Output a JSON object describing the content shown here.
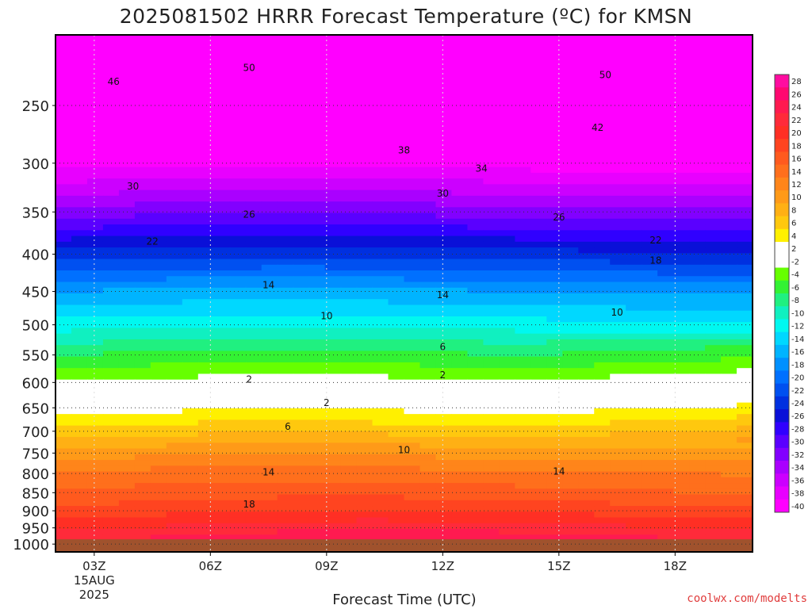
{
  "title": "2025081502 HRRR Forecast Temperature (ºC) for KMSN",
  "x_axis_title": "Forecast Time (UTC)",
  "credit": "coolwx.com/modelts",
  "chart_data": {
    "type": "heatmap",
    "variable": "Temperature (ºC)",
    "x_ticks": [
      {
        "label": "03Z",
        "hour": 3,
        "sub": [
          "15AUG",
          "2025"
        ]
      },
      {
        "label": "06Z",
        "hour": 6
      },
      {
        "label": "09Z",
        "hour": 9
      },
      {
        "label": "12Z",
        "hour": 12
      },
      {
        "label": "15Z",
        "hour": 15
      },
      {
        "label": "18Z",
        "hour": 18
      }
    ],
    "xlim_hours": [
      2,
      20
    ],
    "y_ticks": [
      250,
      300,
      350,
      400,
      450,
      500,
      550,
      600,
      650,
      700,
      750,
      800,
      850,
      900,
      950,
      1000
    ],
    "ylim_hpa": [
      1025,
      200
    ],
    "y_scale": "log-pressure",
    "ground_hpa": 985,
    "dotted_grid_levels": [
      250,
      300,
      350,
      400,
      450,
      500,
      550,
      600,
      650,
      700,
      750,
      800,
      850,
      900,
      950,
      1000
    ],
    "colorbar_levels": [
      28,
      26,
      24,
      22,
      20,
      18,
      16,
      14,
      12,
      10,
      8,
      6,
      4,
      2,
      -2,
      -4,
      -6,
      -8,
      -10,
      -12,
      -14,
      -16,
      -18,
      -20,
      -22,
      -24,
      -26,
      -28,
      -30,
      -32,
      -34,
      -36,
      -38,
      -40
    ],
    "colorbar_colors": [
      "#ff0ca0",
      "#ff0870",
      "#ff1a50",
      "#ff2a3a",
      "#ff2f24",
      "#ff4420",
      "#ff5a1e",
      "#ff6f1c",
      "#ff851a",
      "#ff9a18",
      "#ffb014",
      "#ffc80e",
      "#fff000",
      "#ffffff",
      "#ffffff",
      "#66ff00",
      "#33f233",
      "#20f080",
      "#10f0c0",
      "#00f8f0",
      "#00d8ff",
      "#00b4ff",
      "#0090ff",
      "#0070ff",
      "#0050f0",
      "#0030e0",
      "#0a10d8",
      "#3000ff",
      "#5a00ff",
      "#8200ff",
      "#aa00ff",
      "#cc00ff",
      "#e800ff",
      "#ff00ff"
    ],
    "contours": [
      {
        "value": -50,
        "label": "50",
        "dashed": true
      },
      {
        "value": -46,
        "label": "46",
        "dashed": true
      },
      {
        "value": -42,
        "label": "42",
        "dashed": true
      },
      {
        "value": -38,
        "label": "38",
        "dashed": true
      },
      {
        "value": -34,
        "label": "34",
        "dashed": true
      },
      {
        "value": -30,
        "label": "30",
        "dashed": true
      },
      {
        "value": -26,
        "label": "26",
        "dashed": true
      },
      {
        "value": -22,
        "label": "22",
        "dashed": true
      },
      {
        "value": -18,
        "label": "18",
        "dashed": true
      },
      {
        "value": -14,
        "label": "14",
        "dashed": true
      },
      {
        "value": -10,
        "label": "10",
        "dashed": true
      },
      {
        "value": -6,
        "label": "6",
        "dashed": true
      },
      {
        "value": -2,
        "label": "2",
        "dashed": true
      },
      {
        "value": 0,
        "label": "",
        "dashed": false
      },
      {
        "value": 2,
        "label": "2",
        "dashed": false
      },
      {
        "value": 6,
        "label": "6",
        "dashed": false
      },
      {
        "value": 10,
        "label": "10",
        "dashed": false
      },
      {
        "value": 14,
        "label": "14",
        "dashed": false
      },
      {
        "value": 18,
        "label": "18",
        "dashed": false
      }
    ],
    "label_positions": [
      {
        "text": "50",
        "hour": 7.0,
        "hpa": 222
      },
      {
        "text": "50",
        "hour": 16.2,
        "hpa": 227
      },
      {
        "text": "46",
        "hour": 3.5,
        "hpa": 232
      },
      {
        "text": "42",
        "hour": 16.0,
        "hpa": 268
      },
      {
        "text": "38",
        "hour": 11.0,
        "hpa": 288
      },
      {
        "text": "34",
        "hour": 13.0,
        "hpa": 305
      },
      {
        "text": "30",
        "hour": 4.0,
        "hpa": 323
      },
      {
        "text": "30",
        "hour": 12.0,
        "hpa": 330
      },
      {
        "text": "26",
        "hour": 7.0,
        "hpa": 353
      },
      {
        "text": "26",
        "hour": 15.0,
        "hpa": 356
      },
      {
        "text": "22",
        "hour": 4.5,
        "hpa": 384
      },
      {
        "text": "22",
        "hour": 17.5,
        "hpa": 383
      },
      {
        "text": "18",
        "hour": 17.5,
        "hpa": 408
      },
      {
        "text": "14",
        "hour": 7.5,
        "hpa": 441
      },
      {
        "text": "14",
        "hour": 12.0,
        "hpa": 455
      },
      {
        "text": "10",
        "hour": 9.0,
        "hpa": 486
      },
      {
        "text": "10",
        "hour": 16.5,
        "hpa": 481
      },
      {
        "text": "6",
        "hour": 12.0,
        "hpa": 536
      },
      {
        "text": "2",
        "hour": 7.0,
        "hpa": 594
      },
      {
        "text": "2",
        "hour": 12.0,
        "hpa": 586
      },
      {
        "text": "2",
        "hour": 9.0,
        "hpa": 640
      },
      {
        "text": "6",
        "hour": 8.0,
        "hpa": 690
      },
      {
        "text": "10",
        "hour": 11.0,
        "hpa": 743
      },
      {
        "text": "14",
        "hour": 7.5,
        "hpa": 797
      },
      {
        "text": "14",
        "hour": 15.0,
        "hpa": 795
      },
      {
        "text": "18",
        "hour": 7.0,
        "hpa": 882
      }
    ]
  }
}
